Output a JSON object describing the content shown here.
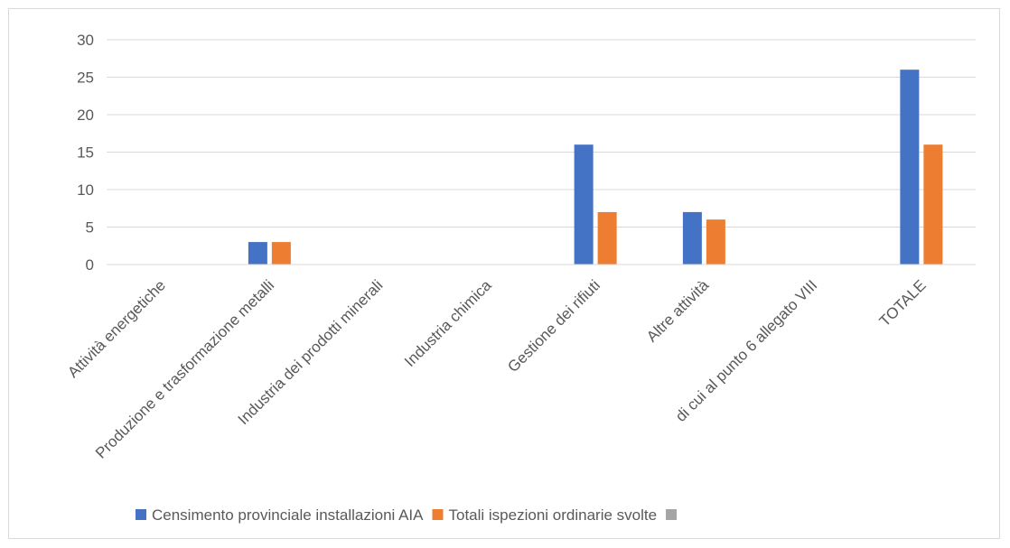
{
  "chart_data": {
    "type": "bar",
    "categories": [
      "Attività energetiche",
      "Produzione e trasformazione metalli",
      "Industria dei prodotti minerali",
      "Industria chimica",
      "Gestione dei rifiuti",
      "Altre attività",
      "di cui al punto 6 allegato VIII",
      "TOTALE"
    ],
    "series": [
      {
        "name": "Censimento provinciale installazioni AIA",
        "color": "#4472c4",
        "values": [
          0,
          3,
          0,
          0,
          16,
          7,
          0,
          26
        ]
      },
      {
        "name": "Totali ispezioni ordinarie svolte",
        "color": "#ed7d31",
        "values": [
          0,
          3,
          0,
          0,
          7,
          6,
          0,
          16
        ]
      },
      {
        "name": "",
        "color": "#a5a5a5",
        "values": [
          0,
          0,
          0,
          0,
          0,
          0,
          0,
          0
        ]
      }
    ],
    "ylim": [
      0,
      30
    ],
    "yticks": [
      0,
      5,
      10,
      15,
      20,
      25,
      30
    ],
    "grid": true,
    "legend": "bottom",
    "title": "",
    "xlabel": "",
    "ylabel": ""
  }
}
